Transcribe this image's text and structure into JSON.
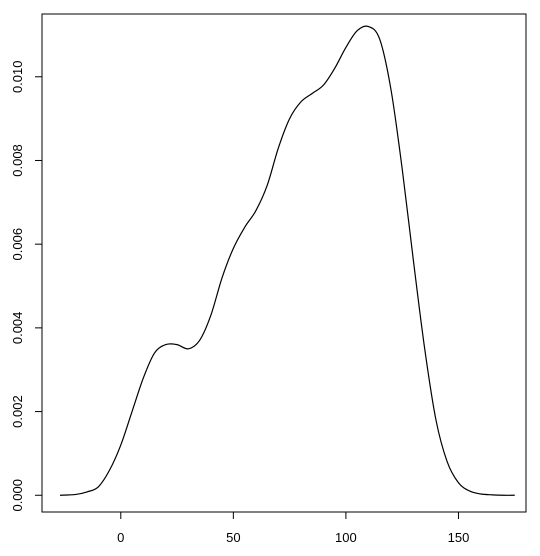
{
  "chart_data": {
    "type": "line",
    "title": "",
    "xlabel": "",
    "ylabel": "",
    "xlim": [
      -35,
      180
    ],
    "ylim": [
      -0.0004,
      0.0115
    ],
    "x_ticks": [
      0,
      50,
      100,
      150
    ],
    "x_tick_labels": [
      "0",
      "50",
      "100",
      "150"
    ],
    "y_ticks": [
      0.0,
      0.002,
      0.004,
      0.006,
      0.008,
      0.01
    ],
    "y_tick_labels": [
      "0.000",
      "0.002",
      "0.004",
      "0.006",
      "0.008",
      "0.010"
    ],
    "grid": false,
    "legend": "none",
    "series": [
      {
        "x": [
          -27,
          -20,
          -15,
          -10,
          -5,
          0,
          5,
          10,
          15,
          20,
          25,
          30,
          35,
          40,
          45,
          50,
          55,
          60,
          65,
          70,
          75,
          80,
          85,
          90,
          95,
          100,
          105,
          110,
          115,
          120,
          125,
          130,
          135,
          140,
          145,
          150,
          155,
          160,
          165,
          170,
          175
        ],
        "y": [
          0.0,
          2e-05,
          8e-05,
          0.0002,
          0.0006,
          0.0012,
          0.002,
          0.0028,
          0.0034,
          0.0036,
          0.0036,
          0.0035,
          0.0037,
          0.0043,
          0.0052,
          0.0059,
          0.0064,
          0.0068,
          0.0074,
          0.0083,
          0.009,
          0.0094,
          0.0096,
          0.0098,
          0.0102,
          0.0107,
          0.0111,
          0.0112,
          0.0109,
          0.0097,
          0.0078,
          0.0056,
          0.0035,
          0.0018,
          0.0008,
          0.0003,
          0.0001,
          3e-05,
          1e-05,
          0.0,
          0.0
        ]
      }
    ]
  }
}
